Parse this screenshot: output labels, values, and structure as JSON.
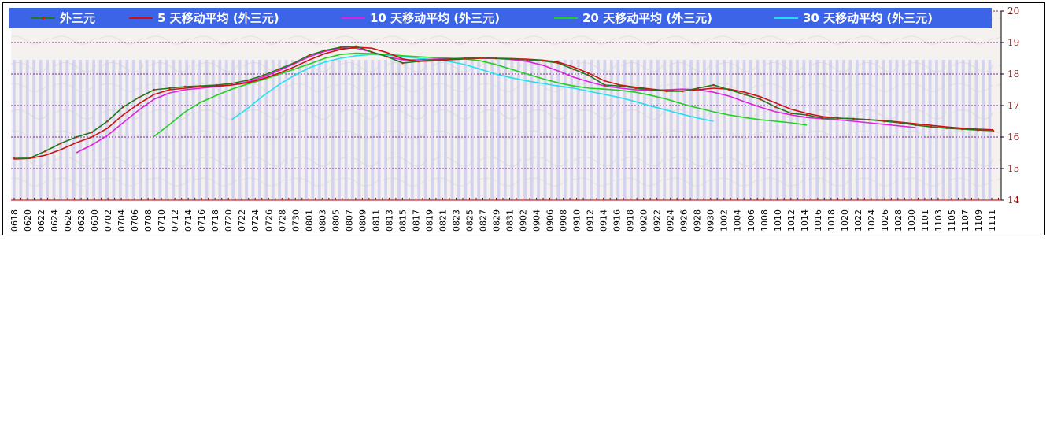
{
  "chart_data": {
    "type": "line",
    "title": "",
    "xlabel": "",
    "ylabel": "",
    "ylim": [
      14,
      20
    ],
    "yticks": [
      14,
      15,
      16,
      17,
      18,
      19,
      20
    ],
    "grid": true,
    "legend_placement": "top",
    "colors": {
      "legend_bg": "#3c64e6",
      "grid_line": "#7a2b8f",
      "bar_fill": "#c8c8f0",
      "ytick_color": "#b00000"
    },
    "x_labels": [
      "0618",
      "0620",
      "0622",
      "0624",
      "0626",
      "0628",
      "0630",
      "0702",
      "0704",
      "0706",
      "0708",
      "0710",
      "0712",
      "0714",
      "0716",
      "0718",
      "0720",
      "0722",
      "0724",
      "0726",
      "0728",
      "0730",
      "0801",
      "0803",
      "0805",
      "0807",
      "0809",
      "0811",
      "0813",
      "0815",
      "0817",
      "0819",
      "0821",
      "0823",
      "0825",
      "0827",
      "0829",
      "0831",
      "0902",
      "0904",
      "0906",
      "0908",
      "0910",
      "0912",
      "0914",
      "0916",
      "0918",
      "0920",
      "0922",
      "0924",
      "0926",
      "0928",
      "0930",
      "1002",
      "1004",
      "1006",
      "1008",
      "1010",
      "1012",
      "1014",
      "1016",
      "1018",
      "1020",
      "1022",
      "1024",
      "1026",
      "1028",
      "1030",
      "1101",
      "1103",
      "1105",
      "1107",
      "1109",
      "1111"
    ],
    "series": [
      {
        "name": "外三元",
        "color": "#1e7a1e",
        "marker_color": "#cc2200",
        "start_index": 0,
        "values": [
          15.32,
          15.33,
          15.55,
          15.8,
          16.0,
          16.15,
          16.5,
          16.95,
          17.25,
          17.5,
          17.55,
          17.6,
          17.62,
          17.65,
          17.7,
          17.8,
          17.95,
          18.15,
          18.35,
          18.6,
          18.75,
          18.85,
          18.88,
          18.7,
          18.55,
          18.35,
          18.4,
          18.45,
          18.48,
          18.5,
          18.52,
          18.5,
          18.48,
          18.45,
          18.42,
          18.35,
          18.15,
          17.95,
          17.65,
          17.62,
          17.55,
          17.5,
          17.45,
          17.45,
          17.55,
          17.65,
          17.5,
          17.35,
          17.2,
          16.95,
          16.75,
          16.7,
          16.6,
          16.6,
          16.58,
          16.55,
          16.5,
          16.45,
          16.38,
          16.32,
          16.28,
          16.25,
          16.22,
          16.2
        ]
      },
      {
        "name": "5 天移动平均 (外三元)",
        "color": "#d01010",
        "start_index": 0,
        "values": [
          15.3,
          15.32,
          15.42,
          15.6,
          15.82,
          16.0,
          16.28,
          16.7,
          17.05,
          17.35,
          17.5,
          17.55,
          17.6,
          17.62,
          17.65,
          17.72,
          17.85,
          18.02,
          18.22,
          18.45,
          18.65,
          18.78,
          18.85,
          18.82,
          18.68,
          18.48,
          18.4,
          18.42,
          18.45,
          18.48,
          18.5,
          18.5,
          18.49,
          18.47,
          18.44,
          18.38,
          18.22,
          18.02,
          17.78,
          17.65,
          17.58,
          17.52,
          17.47,
          17.46,
          17.5,
          17.55,
          17.52,
          17.42,
          17.28,
          17.08,
          16.88,
          16.75,
          16.65,
          16.6,
          16.58,
          16.55,
          16.52,
          16.47,
          16.42,
          16.37,
          16.32,
          16.28,
          16.25,
          16.23
        ]
      },
      {
        "name": "10 天移动平均 (外三元)",
        "color": "#e020e0",
        "start_index": 4,
        "values": [
          15.5,
          15.75,
          16.05,
          16.45,
          16.85,
          17.2,
          17.4,
          17.5,
          17.55,
          17.6,
          17.65,
          17.75,
          17.9,
          18.1,
          18.32,
          18.55,
          18.72,
          18.82,
          18.82,
          18.7,
          18.55,
          18.45,
          18.45,
          18.47,
          18.49,
          18.5,
          18.5,
          18.49,
          18.46,
          18.4,
          18.28,
          18.1,
          17.9,
          17.75,
          17.62,
          17.55,
          17.5,
          17.48,
          17.5,
          17.52,
          17.5,
          17.42,
          17.3,
          17.12,
          16.95,
          16.8,
          16.7,
          16.62,
          16.58,
          16.55,
          16.5,
          16.45,
          16.4,
          16.35,
          16.3
        ]
      },
      {
        "name": "20 天移动平均 (外三元)",
        "color": "#20d020",
        "start_index": 9,
        "values": [
          16.02,
          16.4,
          16.8,
          17.1,
          17.32,
          17.52,
          17.68,
          17.82,
          17.98,
          18.15,
          18.32,
          18.5,
          18.62,
          18.66,
          18.65,
          18.62,
          18.58,
          18.55,
          18.52,
          18.5,
          18.48,
          18.42,
          18.3,
          18.15,
          18.0,
          17.85,
          17.72,
          17.62,
          17.55,
          17.52,
          17.48,
          17.42,
          17.32,
          17.2,
          17.05,
          16.92,
          16.8,
          16.7,
          16.62,
          16.55,
          16.5,
          16.45,
          16.38
        ]
      },
      {
        "name": "30 天移动平均 (外三元)",
        "color": "#20e0f0",
        "start_index": 14,
        "values": [
          16.55,
          16.9,
          17.3,
          17.65,
          17.95,
          18.2,
          18.38,
          18.5,
          18.58,
          18.62,
          18.6,
          18.55,
          18.5,
          18.45,
          18.4,
          18.3,
          18.15,
          18.0,
          17.88,
          17.78,
          17.7,
          17.62,
          17.55,
          17.45,
          17.35,
          17.25,
          17.12,
          16.98,
          16.85,
          16.72,
          16.6,
          16.5
        ]
      }
    ]
  }
}
